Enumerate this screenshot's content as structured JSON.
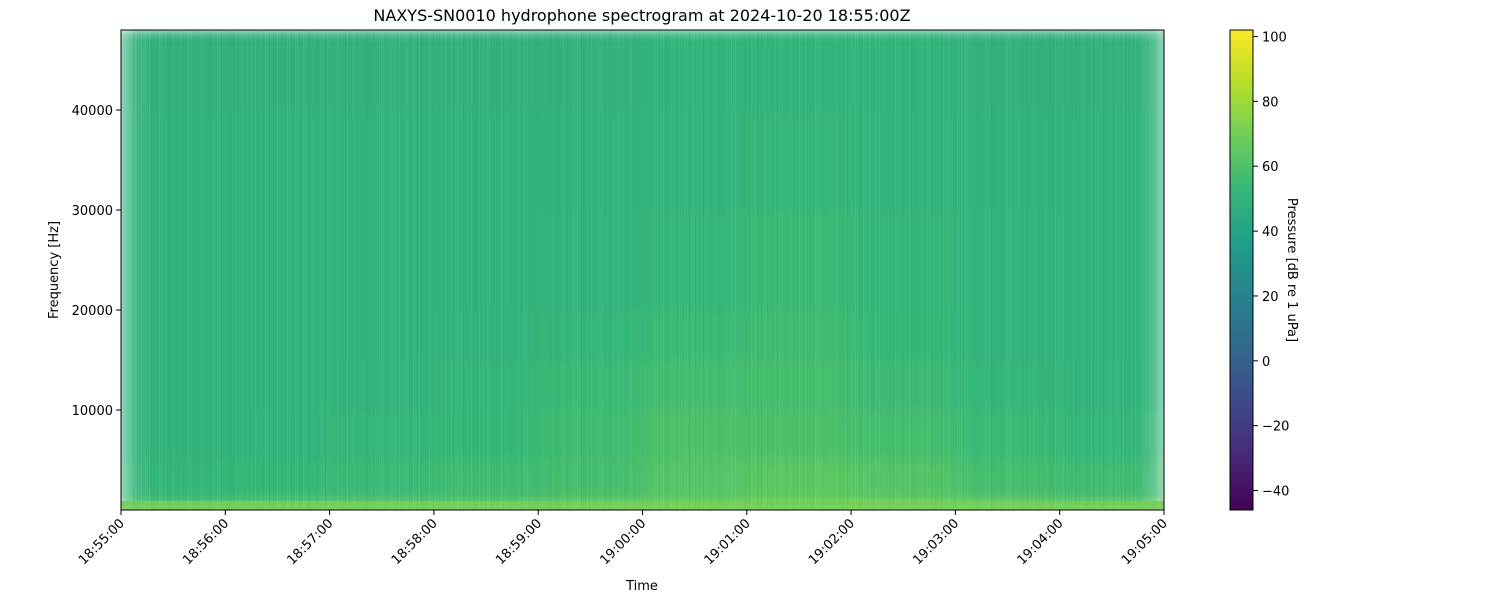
{
  "chart_data": {
    "type": "heatmap",
    "title": "NAXYS-SN0010 hydrophone spectrogram at 2024-10-20 18:55:00Z",
    "xlabel": "Time",
    "ylabel": "Frequency [Hz]",
    "colorbar_label": "Pressure [dB re 1 uPa]",
    "colormap": "viridis",
    "xlim": [
      "18:55:00",
      "19:05:00"
    ],
    "ylim": [
      0,
      48000
    ],
    "clim": [
      -46,
      102
    ],
    "x_ticks": [
      "18:55:00",
      "18:56:00",
      "18:57:00",
      "18:58:00",
      "18:59:00",
      "19:00:00",
      "19:01:00",
      "19:02:00",
      "19:03:00",
      "19:04:00",
      "19:05:00"
    ],
    "y_ticks": [
      10000,
      20000,
      30000,
      40000
    ],
    "y_tick_labels": [
      "10000",
      "20000",
      "30000",
      "40000"
    ],
    "colorbar_ticks": [
      100,
      80,
      60,
      40,
      20,
      0,
      -20,
      -40
    ],
    "colorbar_tick_labels": [
      "100",
      "80",
      "60",
      "40",
      "20",
      "0",
      "−20",
      "−40"
    ],
    "time_bins": [
      "18:55",
      "18:56",
      "18:57",
      "18:58",
      "18:59",
      "19:00",
      "19:01",
      "19:02",
      "19:03",
      "19:04"
    ],
    "freq_bin_edges_hz": [
      0,
      1000,
      5000,
      10000,
      15000,
      20000,
      30000,
      40000,
      48000
    ],
    "values_db": [
      [
        62,
        64,
        66,
        66,
        68,
        70,
        72,
        72,
        70,
        68
      ],
      [
        52,
        53,
        54,
        56,
        58,
        62,
        64,
        62,
        58,
        56
      ],
      [
        50,
        51,
        52,
        53,
        56,
        60,
        60,
        58,
        54,
        52
      ],
      [
        50,
        50,
        51,
        52,
        54,
        57,
        58,
        55,
        52,
        51
      ],
      [
        50,
        50,
        50,
        51,
        52,
        54,
        56,
        53,
        51,
        50
      ],
      [
        50,
        50,
        50,
        50,
        51,
        52,
        54,
        52,
        51,
        50
      ],
      [
        50,
        50,
        50,
        50,
        50,
        51,
        52,
        51,
        50,
        50
      ],
      [
        49,
        49,
        49,
        49,
        49,
        50,
        50,
        50,
        49,
        49
      ]
    ]
  }
}
